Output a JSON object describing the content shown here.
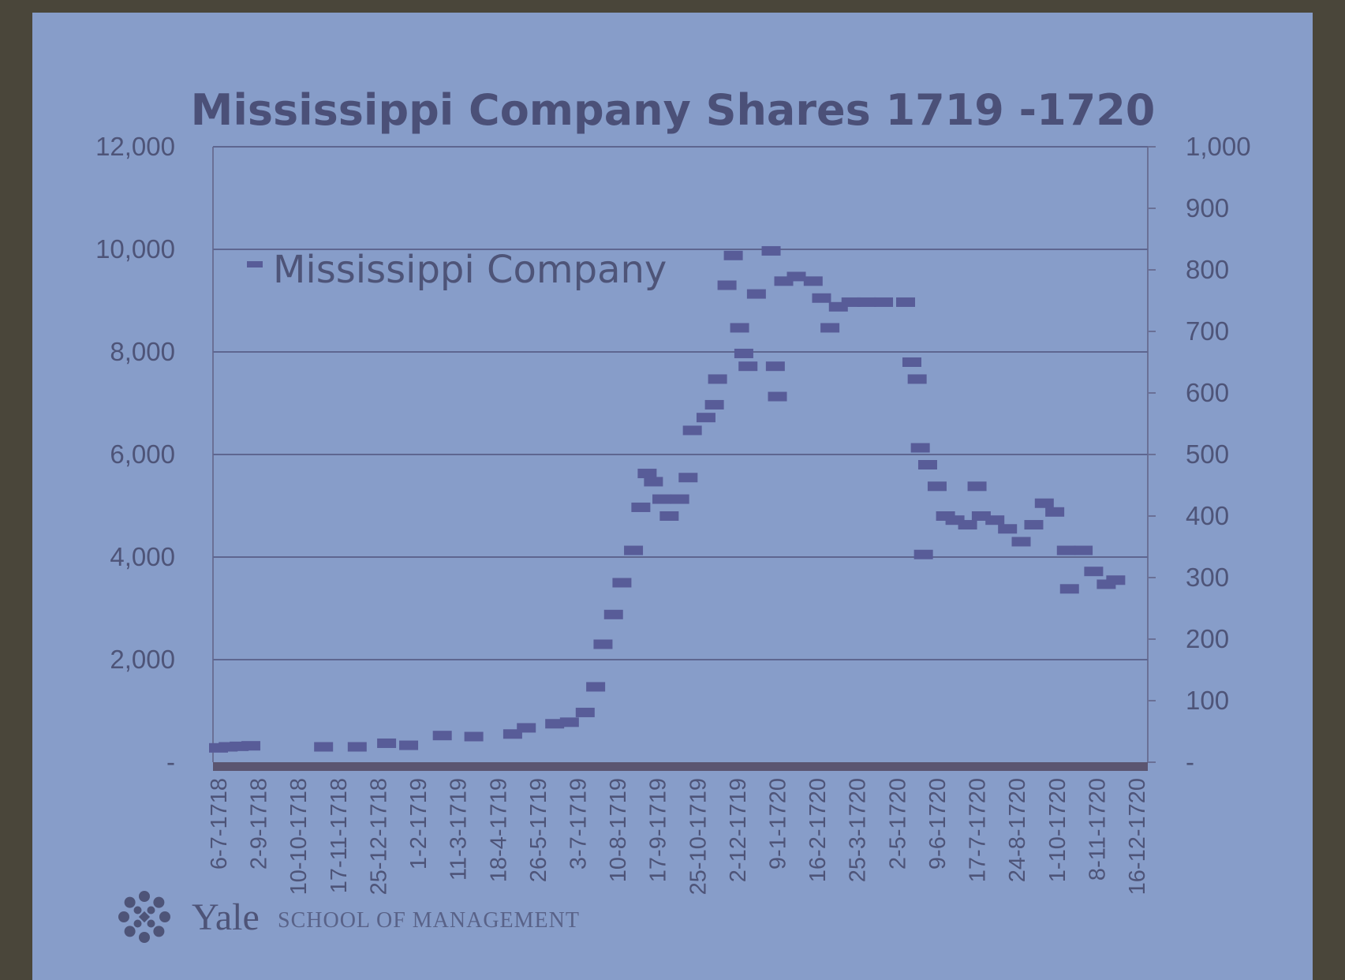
{
  "chart_data": {
    "type": "scatter",
    "title": "Mississippi Company Shares 1719 -1720",
    "xlabel": "",
    "ylabel": "",
    "ylim": [
      0,
      12000
    ],
    "y2lim": [
      0,
      1000
    ],
    "grid": true,
    "legend_position": "top-left",
    "colors": {
      "marker": "#585c98",
      "slide": "#879dc9",
      "text": "#4e5478"
    },
    "left_ticks": [
      "12,000",
      "10,000",
      "8,000",
      "6,000",
      "4,000",
      "2,000",
      "-"
    ],
    "right_ticks": [
      "1,000",
      "900",
      "800",
      "700",
      "600",
      "500",
      "400",
      "300",
      "200",
      "100",
      "-"
    ],
    "x_ticks": [
      "6-7-1718",
      "2-9-1718",
      "10-10-1718",
      "17-11-1718",
      "25-12-1718",
      "1-2-1719",
      "11-3-1719",
      "18-4-1719",
      "26-5-1719",
      "3-7-1719",
      "10-8-1719",
      "17-9-1719",
      "25-10-1719",
      "2-12-1719",
      "9-1-1720",
      "16-2-1720",
      "25-3-1720",
      "2-5-1720",
      "9-6-1720",
      "17-7-1720",
      "24-8-1720",
      "1-10-1720",
      "8-11-1720",
      "16-12-1720"
    ],
    "series": [
      {
        "name": "Mississippi Company",
        "points": [
          [
            "1718-07-06",
            280
          ],
          [
            "1718-07-20",
            300
          ],
          [
            "1718-08-05",
            310
          ],
          [
            "1718-08-22",
            320
          ],
          [
            "1718-11-03",
            300
          ],
          [
            "1718-12-05",
            300
          ],
          [
            "1719-01-02",
            370
          ],
          [
            "1719-01-23",
            330
          ],
          [
            "1719-02-24",
            520
          ],
          [
            "1719-03-26",
            500
          ],
          [
            "1719-05-02",
            550
          ],
          [
            "1719-05-15",
            670
          ],
          [
            "1719-06-11",
            750
          ],
          [
            "1719-06-25",
            780
          ],
          [
            "1719-07-10",
            970
          ],
          [
            "1719-07-20",
            1470
          ],
          [
            "1719-07-27",
            2300
          ],
          [
            "1719-08-06",
            2880
          ],
          [
            "1719-08-14",
            3500
          ],
          [
            "1719-08-25",
            4130
          ],
          [
            "1719-09-01",
            4970
          ],
          [
            "1719-09-07",
            5630
          ],
          [
            "1719-09-13",
            5470
          ],
          [
            "1719-09-21",
            5130
          ],
          [
            "1719-09-28",
            4800
          ],
          [
            "1719-10-08",
            5130
          ],
          [
            "1719-10-16",
            5550
          ],
          [
            "1719-10-20",
            6470
          ],
          [
            "1719-11-02",
            6720
          ],
          [
            "1719-11-10",
            6970
          ],
          [
            "1719-11-13",
            7470
          ],
          [
            "1719-11-22",
            9300
          ],
          [
            "1719-11-28",
            9880
          ],
          [
            "1719-12-04",
            8470
          ],
          [
            "1719-12-08",
            7970
          ],
          [
            "1719-12-12",
            7720
          ],
          [
            "1719-12-20",
            9130
          ],
          [
            "1720-01-03",
            9970
          ],
          [
            "1720-01-07",
            7720
          ],
          [
            "1720-01-09",
            7130
          ],
          [
            "1720-01-15",
            9380
          ],
          [
            "1720-01-27",
            9470
          ],
          [
            "1720-02-12",
            9380
          ],
          [
            "1720-02-20",
            9050
          ],
          [
            "1720-02-28",
            8470
          ],
          [
            "1720-03-07",
            8880
          ],
          [
            "1720-03-19",
            8970
          ],
          [
            "1720-04-03",
            8970
          ],
          [
            "1720-04-19",
            8970
          ],
          [
            "1720-05-10",
            8970
          ],
          [
            "1720-05-16",
            7800
          ],
          [
            "1720-05-21",
            7470
          ],
          [
            "1720-05-24",
            6130
          ],
          [
            "1720-05-27",
            4050
          ],
          [
            "1720-05-31",
            5800
          ],
          [
            "1720-06-09",
            5380
          ],
          [
            "1720-06-17",
            4800
          ],
          [
            "1720-06-26",
            4720
          ],
          [
            "1720-07-08",
            4630
          ],
          [
            "1720-07-17",
            5380
          ],
          [
            "1720-07-21",
            4800
          ],
          [
            "1720-08-03",
            4720
          ],
          [
            "1720-08-15",
            4550
          ],
          [
            "1720-08-28",
            4300
          ],
          [
            "1720-09-09",
            4630
          ],
          [
            "1720-09-19",
            5050
          ],
          [
            "1720-09-29",
            4880
          ],
          [
            "1720-10-10",
            4130
          ],
          [
            "1720-10-13",
            3380
          ],
          [
            "1720-10-26",
            4130
          ],
          [
            "1720-11-05",
            3720
          ],
          [
            "1720-11-17",
            3470
          ],
          [
            "1720-11-26",
            3550
          ]
        ]
      }
    ]
  },
  "logo": {
    "name": "Yale",
    "subtitle": "SCHOOL OF MANAGEMENT"
  }
}
